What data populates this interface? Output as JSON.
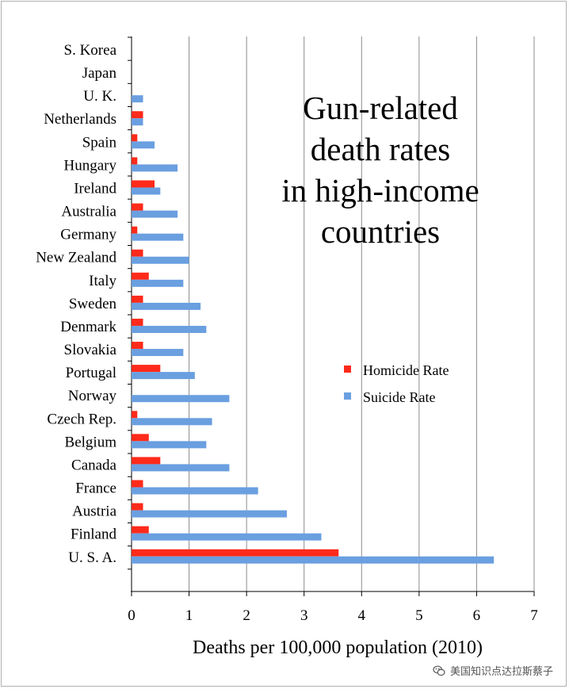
{
  "chart_data": {
    "type": "bar",
    "orientation": "horizontal",
    "title_lines": [
      "Gun-related",
      "death rates",
      "in high-income",
      "countries"
    ],
    "xlabel": "Deaths per 100,000 population (2010)",
    "ylabel": "",
    "xlim": [
      0,
      7
    ],
    "xticks": [
      "0",
      "1",
      "2",
      "3",
      "4",
      "5",
      "6",
      "7"
    ],
    "grid": true,
    "legend_placement": "middle-right",
    "categories": [
      "S. Korea",
      "Japan",
      "U. K.",
      "Netherlands",
      "Spain",
      "Hungary",
      "Ireland",
      "Australia",
      "Germany",
      "New Zealand",
      "Italy",
      "Sweden",
      "Denmark",
      "Slovakia",
      "Portugal",
      "Norway",
      "Czech Rep.",
      "Belgium",
      "Canada",
      "France",
      "Austria",
      "Finland",
      "U. S. A."
    ],
    "series": [
      {
        "name": "Homicide Rate",
        "color": "#ff2a1a",
        "values": [
          0,
          0,
          0,
          0.2,
          0.1,
          0.1,
          0.4,
          0.2,
          0.1,
          0.2,
          0.3,
          0.2,
          0.2,
          0.2,
          0.5,
          0,
          0.1,
          0.3,
          0.5,
          0.2,
          0.2,
          0.3,
          3.6
        ]
      },
      {
        "name": "Suicide Rate",
        "color": "#6a9fe0",
        "values": [
          0,
          0,
          0.2,
          0.2,
          0.4,
          0.8,
          0.5,
          0.8,
          0.9,
          1.0,
          0.9,
          1.2,
          1.3,
          0.9,
          1.1,
          1.7,
          1.4,
          1.3,
          1.7,
          2.2,
          2.7,
          3.3,
          6.3
        ]
      }
    ]
  },
  "watermark": {
    "icon": "wechat-icon",
    "text": "美国知识点达拉斯蔡子"
  }
}
